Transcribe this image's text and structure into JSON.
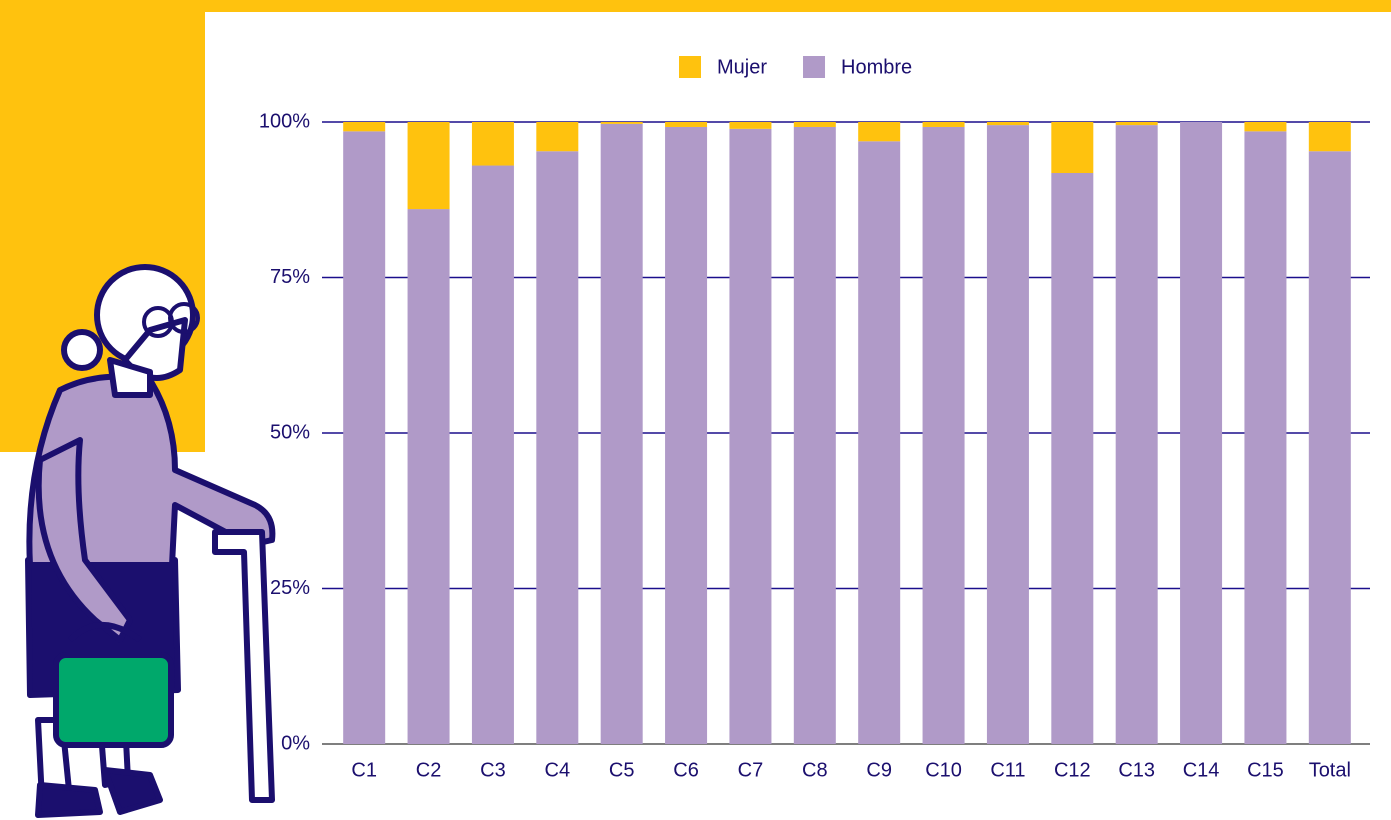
{
  "chart_data": {
    "type": "stacked_bar",
    "categories": [
      "C1",
      "C2",
      "C3",
      "C4",
      "C5",
      "C6",
      "C7",
      "C8",
      "C9",
      "C10",
      "C11",
      "C12",
      "C13",
      "C14",
      "C15",
      "Total"
    ],
    "series": [
      {
        "name": "Mujer",
        "color": "#ffc20e",
        "values": [
          1.5,
          14,
          7,
          4.7,
          0.3,
          0.8,
          1.1,
          0.8,
          3.1,
          0.8,
          0.5,
          8.2,
          0.5,
          0,
          1.5,
          4.7
        ]
      },
      {
        "name": "Hombre",
        "color": "#b09ac8",
        "values": [
          98.5,
          86,
          93,
          95.3,
          99.7,
          99.2,
          98.9,
          99.2,
          96.9,
          99.2,
          99.5,
          91.8,
          99.5,
          100,
          98.5,
          95.3
        ]
      }
    ],
    "ylim": [
      0,
      100
    ],
    "yticks": [
      {
        "value": 0,
        "label": "0%"
      },
      {
        "value": 25,
        "label": "25%"
      },
      {
        "value": 50,
        "label": "50%"
      },
      {
        "value": 75,
        "label": "75%"
      },
      {
        "value": 100,
        "label": "100%"
      }
    ],
    "grid": true,
    "legend": "top"
  }
}
